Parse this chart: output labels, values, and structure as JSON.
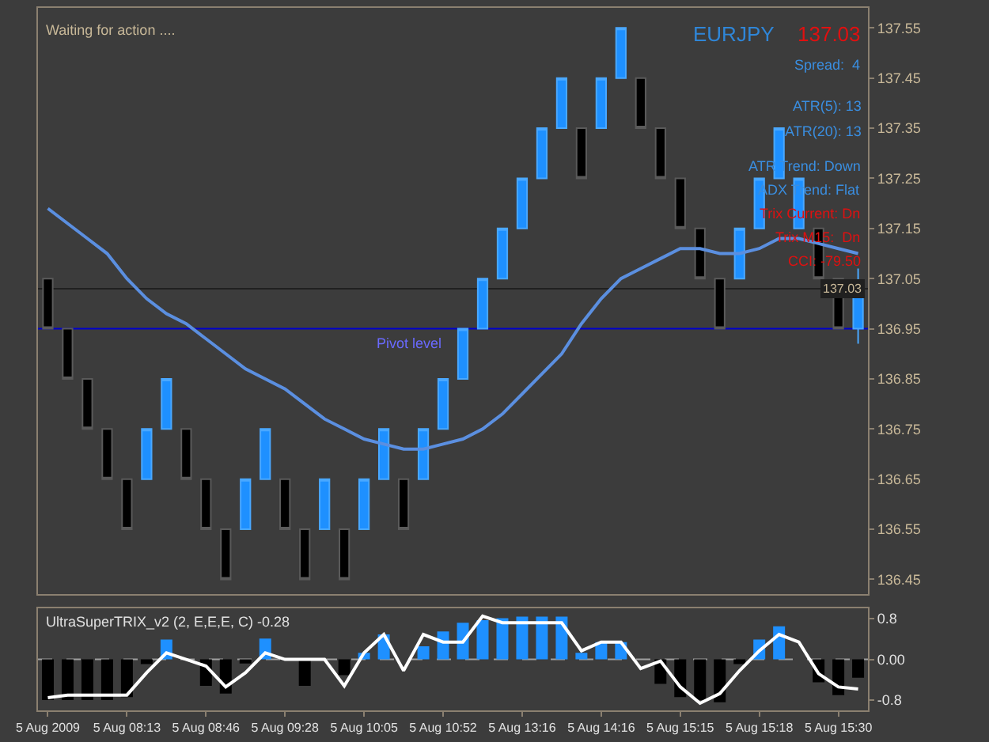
{
  "chart_data": [
    {
      "type": "candlestick",
      "categories": [
        null,
        null,
        null,
        null,
        null,
        null,
        null,
        null,
        null,
        null,
        null,
        null,
        null,
        null,
        null,
        null,
        null,
        null,
        null,
        null,
        null,
        null,
        null,
        null,
        null,
        null,
        null,
        null,
        null,
        null,
        null,
        null,
        null,
        null,
        null,
        null,
        null,
        null,
        null,
        null,
        null,
        null
      ],
      "ohlc": [
        [
          137.05,
          137.05,
          136.95,
          136.95
        ],
        [
          136.95,
          136.95,
          136.85,
          136.85
        ],
        [
          136.85,
          136.85,
          136.75,
          136.75
        ],
        [
          136.75,
          136.75,
          136.65,
          136.65
        ],
        [
          136.65,
          136.65,
          136.55,
          136.55
        ],
        [
          136.65,
          136.75,
          136.65,
          136.75
        ],
        [
          136.75,
          136.85,
          136.75,
          136.85
        ],
        [
          136.75,
          136.75,
          136.65,
          136.65
        ],
        [
          136.65,
          136.65,
          136.55,
          136.55
        ],
        [
          136.55,
          136.55,
          136.45,
          136.45
        ],
        [
          136.55,
          136.65,
          136.55,
          136.65
        ],
        [
          136.65,
          136.75,
          136.65,
          136.75
        ],
        [
          136.65,
          136.65,
          136.55,
          136.55
        ],
        [
          136.55,
          136.55,
          136.45,
          136.45
        ],
        [
          136.55,
          136.65,
          136.55,
          136.65
        ],
        [
          136.55,
          136.55,
          136.45,
          136.45
        ],
        [
          136.55,
          136.65,
          136.55,
          136.65
        ],
        [
          136.65,
          136.75,
          136.65,
          136.75
        ],
        [
          136.65,
          136.65,
          136.55,
          136.55
        ],
        [
          136.65,
          136.75,
          136.65,
          136.75
        ],
        [
          136.75,
          136.85,
          136.75,
          136.85
        ],
        [
          136.85,
          136.95,
          136.85,
          136.95
        ],
        [
          136.95,
          137.05,
          136.95,
          137.05
        ],
        [
          137.05,
          137.15,
          137.05,
          137.15
        ],
        [
          137.15,
          137.25,
          137.15,
          137.25
        ],
        [
          137.25,
          137.35,
          137.25,
          137.35
        ],
        [
          137.35,
          137.45,
          137.35,
          137.45
        ],
        [
          137.35,
          137.35,
          137.25,
          137.25
        ],
        [
          137.35,
          137.45,
          137.35,
          137.45
        ],
        [
          137.45,
          137.55,
          137.45,
          137.55
        ],
        [
          137.45,
          137.45,
          137.35,
          137.35
        ],
        [
          137.35,
          137.35,
          137.25,
          137.25
        ],
        [
          137.25,
          137.25,
          137.15,
          137.15
        ],
        [
          137.15,
          137.15,
          137.05,
          137.05
        ],
        [
          137.05,
          137.05,
          136.95,
          136.95
        ],
        [
          137.05,
          137.15,
          137.05,
          137.15
        ],
        [
          137.15,
          137.25,
          137.15,
          137.25
        ],
        [
          137.25,
          137.35,
          137.25,
          137.35
        ],
        [
          137.15,
          137.25,
          137.15,
          137.25
        ],
        [
          137.15,
          137.15,
          137.05,
          137.05
        ],
        [
          137.05,
          137.05,
          136.95,
          136.95
        ],
        [
          136.95,
          137.07,
          136.92,
          137.03
        ]
      ],
      "series": [
        {
          "type": "line",
          "color": "#5b8fe0",
          "values": [
            137.19,
            137.16,
            137.13,
            137.1,
            137.05,
            137.01,
            136.98,
            136.96,
            136.93,
            136.9,
            136.87,
            136.85,
            136.83,
            136.8,
            136.77,
            136.75,
            136.73,
            136.72,
            136.71,
            136.71,
            136.72,
            136.73,
            136.75,
            136.78,
            136.82,
            136.86,
            136.9,
            136.96,
            137.01,
            137.05,
            137.07,
            137.09,
            137.11,
            137.11,
            137.1,
            137.1,
            137.11,
            137.13,
            137.13,
            137.12,
            137.11,
            137.1
          ]
        }
      ],
      "ylim": [
        136.42,
        137.59
      ],
      "yticks": [
        136.45,
        136.55,
        136.65,
        136.75,
        136.85,
        136.95,
        137.05,
        137.15,
        137.25,
        137.35,
        137.45,
        137.55
      ],
      "ref_lines": [
        {
          "axis": "y",
          "value": 137.03,
          "label": "137.03",
          "color": "#202020"
        },
        {
          "axis": "y",
          "value": 136.95,
          "label": "Pivot level",
          "color": "#0000cc"
        }
      ],
      "annotations": [
        "Waiting for action ....",
        "EURJPY",
        "137.03",
        "Spread:  4",
        "ATR(5): 13",
        "ATR(20): 13",
        "ATR Trend: Down",
        "ADX Trend: Flat",
        "Trix Current: Dn",
        "Trix M15:  Dn",
        "CCI: -79.50"
      ],
      "tick_labels": "y",
      "grid": false
    },
    {
      "type": "bar",
      "title": "UltraSuperTRIX_v2 (2, E,E,E, C) -0.28",
      "categories": [
        "5 Aug 2009",
        null,
        null,
        null,
        "5 Aug 08:13",
        null,
        null,
        null,
        "5 Aug 08:46",
        null,
        null,
        null,
        "5 Aug 09:28",
        null,
        null,
        null,
        "5 Aug 10:05",
        null,
        null,
        null,
        "5 Aug 10:52",
        null,
        null,
        null,
        "5 Aug 13:16",
        null,
        null,
        null,
        "5 Aug 14:16",
        null,
        null,
        null,
        "5 Aug 15:15",
        null,
        null,
        null,
        "5 Aug 15:18",
        null,
        null,
        null,
        "5 Aug 15:30",
        null
      ],
      "series": [
        {
          "type": "bar",
          "values": [
            -0.8,
            -0.8,
            -0.8,
            -0.8,
            -0.74,
            -0.09,
            0.39,
            0,
            -0.52,
            -0.67,
            -0.08,
            0.41,
            0,
            -0.52,
            0,
            -0.31,
            0.13,
            0.49,
            0,
            0.26,
            0.55,
            0.72,
            0.77,
            0.81,
            0.84,
            0.84,
            0.84,
            0.13,
            0.34,
            0.34,
            0,
            -0.48,
            -0.74,
            -0.8,
            -0.84,
            -0.09,
            0.39,
            0.65,
            0,
            -0.45,
            -0.7,
            -0.36
          ],
          "colors": [
            "#000000",
            "#000000",
            "#000000",
            "#000000",
            "#000000",
            "#000000",
            "#1e90ff",
            "#000000",
            "#000000",
            "#000000",
            "#000000",
            "#1e90ff",
            "#000000",
            "#000000",
            "#000000",
            "#000000",
            "#1e90ff",
            "#1e90ff",
            "#000000",
            "#1e90ff",
            "#1e90ff",
            "#1e90ff",
            "#1e90ff",
            "#1e90ff",
            "#1e90ff",
            "#1e90ff",
            "#1e90ff",
            "#1e90ff",
            "#1e90ff",
            "#1e90ff",
            "#000000",
            "#000000",
            "#000000",
            "#000000",
            "#000000",
            "#000000",
            "#1e90ff",
            "#1e90ff",
            "#000000",
            "#000000",
            "#000000",
            "#000000"
          ]
        },
        {
          "type": "line",
          "color": "#ffffff",
          "values": [
            -0.75,
            -0.7,
            -0.7,
            -0.7,
            -0.7,
            -0.26,
            0.13,
            0,
            -0.13,
            -0.54,
            -0.26,
            0.13,
            0,
            0,
            0,
            -0.52,
            0.13,
            0.49,
            -0.22,
            0.49,
            0.34,
            0.34,
            0.85,
            0.72,
            0.72,
            0.72,
            0.72,
            0.17,
            0.34,
            0.34,
            -0.18,
            -0.03,
            -0.54,
            -0.86,
            -0.67,
            -0.22,
            0.17,
            0.49,
            0.34,
            -0.28,
            -0.54,
            -0.58
          ]
        }
      ],
      "ylim": [
        -1.0,
        1.0
      ],
      "yticks": [
        {
          "value": 0.8,
          "label": "0.8"
        },
        {
          "value": 0,
          "label": "0.00"
        },
        {
          "value": -0.8,
          "label": "-0.8"
        }
      ],
      "ref_lines": [
        {
          "axis": "y",
          "value": 0,
          "color": "#a0a0a0",
          "line_style": "dashed"
        }
      ],
      "grid": false
    }
  ]
}
